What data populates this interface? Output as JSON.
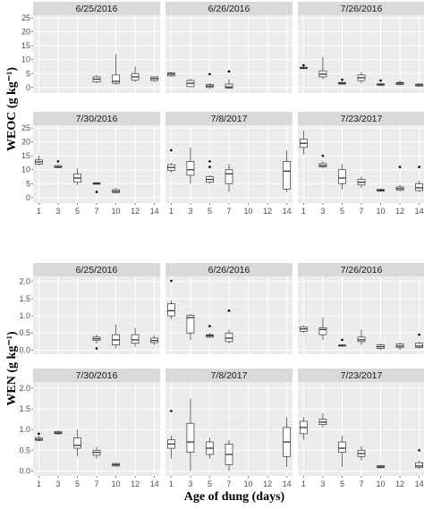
{
  "figure": {
    "xlabel": "Age of dung (days)",
    "x_ticks": [
      "1",
      "3",
      "5",
      "7",
      "10",
      "12",
      "14"
    ]
  },
  "chart_data": [
    {
      "type": "box",
      "name": "weoc",
      "ylabel": "WEOC (g kg⁻¹)",
      "ylim": [
        -2,
        26
      ],
      "yticks": [
        0,
        5,
        10,
        15,
        20,
        25
      ],
      "x_categories": [
        "1",
        "3",
        "5",
        "7",
        "10",
        "12",
        "14"
      ],
      "facets": [
        {
          "title": "6/25/2016",
          "boxes": [
            {
              "x": "7",
              "min": 1.5,
              "q1": 2.0,
              "median": 3.0,
              "q3": 3.8,
              "max": 4.5,
              "outliers": []
            },
            {
              "x": "10",
              "min": 1.0,
              "q1": 1.5,
              "median": 2.2,
              "q3": 4.5,
              "max": 12.0,
              "outliers": []
            },
            {
              "x": "12",
              "min": 2.0,
              "q1": 2.6,
              "median": 3.8,
              "q3": 5.0,
              "max": 7.5,
              "outliers": []
            },
            {
              "x": "14",
              "min": 2.0,
              "q1": 2.5,
              "median": 3.2,
              "q3": 3.8,
              "max": 4.0,
              "outliers": []
            }
          ]
        },
        {
          "title": "6/26/2016",
          "boxes": [
            {
              "x": "1",
              "min": 3.8,
              "q1": 4.2,
              "median": 4.8,
              "q3": 5.2,
              "max": 5.6,
              "outliers": []
            },
            {
              "x": "3",
              "min": 0.0,
              "q1": 0.3,
              "median": 1.5,
              "q3": 2.5,
              "max": 3.2,
              "outliers": []
            },
            {
              "x": "5",
              "min": -0.5,
              "q1": 0.0,
              "median": 0.5,
              "q3": 1.0,
              "max": 1.5,
              "outliers": [
                4.8
              ]
            },
            {
              "x": "7",
              "min": -0.5,
              "q1": -0.2,
              "median": 0.2,
              "q3": 1.2,
              "max": 3.0,
              "outliers": [
                5.8
              ]
            }
          ]
        },
        {
          "title": "7/26/2016",
          "boxes": [
            {
              "x": "1",
              "min": 6.5,
              "q1": 6.8,
              "median": 7.0,
              "q3": 7.3,
              "max": 7.5,
              "outliers": [
                8.0
              ]
            },
            {
              "x": "3",
              "min": 3.0,
              "q1": 3.8,
              "median": 4.8,
              "q3": 6.0,
              "max": 11.0,
              "outliers": []
            },
            {
              "x": "5",
              "min": 1.0,
              "q1": 1.2,
              "median": 1.5,
              "q3": 1.8,
              "max": 2.0,
              "outliers": [
                2.8
              ]
            },
            {
              "x": "7",
              "min": 1.5,
              "q1": 2.5,
              "median": 3.5,
              "q3": 4.5,
              "max": 5.5,
              "outliers": []
            },
            {
              "x": "10",
              "min": 0.5,
              "q1": 0.8,
              "median": 1.0,
              "q3": 1.3,
              "max": 1.6,
              "outliers": [
                2.5
              ]
            },
            {
              "x": "12",
              "min": 0.6,
              "q1": 1.0,
              "median": 1.5,
              "q3": 1.8,
              "max": 2.5,
              "outliers": []
            },
            {
              "x": "14",
              "min": 0.2,
              "q1": 0.5,
              "median": 0.9,
              "q3": 1.2,
              "max": 1.5,
              "outliers": []
            }
          ]
        },
        {
          "title": "7/30/2016",
          "boxes": [
            {
              "x": "1",
              "min": 11.5,
              "q1": 12.0,
              "median": 12.8,
              "q3": 13.5,
              "max": 15.0,
              "outliers": []
            },
            {
              "x": "3",
              "min": 10.5,
              "q1": 10.8,
              "median": 11.0,
              "q3": 11.5,
              "max": 11.8,
              "outliers": [
                13.0
              ]
            },
            {
              "x": "5",
              "min": 4.5,
              "q1": 5.5,
              "median": 7.0,
              "q3": 8.5,
              "max": 10.5,
              "outliers": []
            },
            {
              "x": "7",
              "min": 4.5,
              "q1": 4.8,
              "median": 5.0,
              "q3": 5.3,
              "max": 5.5,
              "outliers": [
                2.0
              ]
            },
            {
              "x": "10",
              "min": 1.5,
              "q1": 1.8,
              "median": 2.2,
              "q3": 2.8,
              "max": 3.5,
              "outliers": []
            }
          ]
        },
        {
          "title": "7/8/2017",
          "boxes": [
            {
              "x": "1",
              "min": 9.0,
              "q1": 9.8,
              "median": 10.8,
              "q3": 11.8,
              "max": 12.5,
              "outliers": [
                17.0
              ]
            },
            {
              "x": "3",
              "min": 5.0,
              "q1": 8.0,
              "median": 10.0,
              "q3": 13.0,
              "max": 18.0,
              "outliers": []
            },
            {
              "x": "5",
              "min": 5.0,
              "q1": 5.5,
              "median": 6.5,
              "q3": 7.5,
              "max": 8.0,
              "outliers": [
                13.0,
                11.0
              ]
            },
            {
              "x": "7",
              "min": 2.0,
              "q1": 5.0,
              "median": 8.5,
              "q3": 10.0,
              "max": 12.0,
              "outliers": []
            },
            {
              "x": "14",
              "min": 2.0,
              "q1": 3.0,
              "median": 9.5,
              "q3": 13.0,
              "max": 17.0,
              "outliers": []
            }
          ]
        },
        {
          "title": "7/23/2017",
          "boxes": [
            {
              "x": "1",
              "min": 15.5,
              "q1": 18.0,
              "median": 19.5,
              "q3": 21.0,
              "max": 24.0,
              "outliers": []
            },
            {
              "x": "3",
              "min": 10.5,
              "q1": 11.0,
              "median": 11.5,
              "q3": 12.2,
              "max": 13.0,
              "outliers": [
                15.0
              ]
            },
            {
              "x": "5",
              "min": 3.0,
              "q1": 5.0,
              "median": 7.0,
              "q3": 10.0,
              "max": 12.0,
              "outliers": []
            },
            {
              "x": "7",
              "min": 3.5,
              "q1": 4.5,
              "median": 5.5,
              "q3": 6.5,
              "max": 7.5,
              "outliers": []
            },
            {
              "x": "10",
              "min": 2.0,
              "q1": 2.3,
              "median": 2.6,
              "q3": 2.9,
              "max": 3.2,
              "outliers": []
            },
            {
              "x": "12",
              "min": 2.2,
              "q1": 2.6,
              "median": 3.2,
              "q3": 3.8,
              "max": 4.5,
              "outliers": [
                11.0
              ]
            },
            {
              "x": "14",
              "min": 2.0,
              "q1": 2.5,
              "median": 3.5,
              "q3": 5.0,
              "max": 6.0,
              "outliers": [
                11.0
              ]
            }
          ]
        }
      ]
    },
    {
      "type": "box",
      "name": "wen",
      "ylabel": "WEN (g kg⁻¹)",
      "ylim": [
        -0.12,
        2.15
      ],
      "yticks": [
        0.0,
        0.5,
        1.0,
        1.5,
        2.0
      ],
      "x_categories": [
        "1",
        "3",
        "5",
        "7",
        "10",
        "12",
        "14"
      ],
      "facets": [
        {
          "title": "6/25/2016",
          "boxes": [
            {
              "x": "7",
              "min": 0.2,
              "q1": 0.28,
              "median": 0.33,
              "q3": 0.38,
              "max": 0.45,
              "outliers": [
                0.05
              ]
            },
            {
              "x": "10",
              "min": 0.05,
              "q1": 0.15,
              "median": 0.3,
              "q3": 0.45,
              "max": 0.75,
              "outliers": []
            },
            {
              "x": "12",
              "min": 0.1,
              "q1": 0.2,
              "median": 0.3,
              "q3": 0.45,
              "max": 0.65,
              "outliers": []
            },
            {
              "x": "14",
              "min": 0.15,
              "q1": 0.22,
              "median": 0.28,
              "q3": 0.35,
              "max": 0.42,
              "outliers": []
            }
          ]
        },
        {
          "title": "6/26/2016",
          "boxes": [
            {
              "x": "1",
              "min": 0.9,
              "q1": 1.0,
              "median": 1.15,
              "q3": 1.35,
              "max": 1.45,
              "outliers": [
                2.02
              ]
            },
            {
              "x": "3",
              "min": 0.3,
              "q1": 0.5,
              "median": 0.95,
              "q3": 1.02,
              "max": 1.05,
              "outliers": []
            },
            {
              "x": "5",
              "min": 0.35,
              "q1": 0.38,
              "median": 0.42,
              "q3": 0.45,
              "max": 0.5,
              "outliers": [
                0.7
              ]
            },
            {
              "x": "7",
              "min": 0.2,
              "q1": 0.25,
              "median": 0.35,
              "q3": 0.5,
              "max": 0.6,
              "outliers": [
                1.15
              ]
            }
          ]
        },
        {
          "title": "7/26/2016",
          "boxes": [
            {
              "x": "1",
              "min": 0.5,
              "q1": 0.55,
              "median": 0.62,
              "q3": 0.68,
              "max": 0.72,
              "outliers": []
            },
            {
              "x": "3",
              "min": 0.3,
              "q1": 0.45,
              "median": 0.6,
              "q3": 0.65,
              "max": 0.95,
              "outliers": []
            },
            {
              "x": "5",
              "min": 0.1,
              "q1": 0.12,
              "median": 0.13,
              "q3": 0.15,
              "max": 0.18,
              "outliers": [
                0.3
              ]
            },
            {
              "x": "7",
              "min": 0.15,
              "q1": 0.25,
              "median": 0.3,
              "q3": 0.38,
              "max": 0.6,
              "outliers": []
            },
            {
              "x": "10",
              "min": 0.0,
              "q1": 0.05,
              "median": 0.1,
              "q3": 0.15,
              "max": 0.2,
              "outliers": []
            },
            {
              "x": "12",
              "min": 0.0,
              "q1": 0.08,
              "median": 0.12,
              "q3": 0.18,
              "max": 0.22,
              "outliers": []
            },
            {
              "x": "14",
              "min": 0.05,
              "q1": 0.08,
              "median": 0.12,
              "q3": 0.2,
              "max": 0.25,
              "outliers": [
                0.45
              ]
            }
          ]
        },
        {
          "title": "7/30/2016",
          "boxes": [
            {
              "x": "1",
              "min": 0.72,
              "q1": 0.74,
              "median": 0.76,
              "q3": 0.8,
              "max": 0.85,
              "outliers": [
                0.9
              ]
            },
            {
              "x": "3",
              "min": 0.87,
              "q1": 0.9,
              "median": 0.92,
              "q3": 0.95,
              "max": 0.98,
              "outliers": []
            },
            {
              "x": "5",
              "min": 0.35,
              "q1": 0.55,
              "median": 0.62,
              "q3": 0.8,
              "max": 1.0,
              "outliers": []
            },
            {
              "x": "7",
              "min": 0.3,
              "q1": 0.38,
              "median": 0.45,
              "q3": 0.5,
              "max": 0.58,
              "outliers": []
            },
            {
              "x": "10",
              "min": 0.1,
              "q1": 0.12,
              "median": 0.15,
              "q3": 0.18,
              "max": 0.2,
              "outliers": []
            }
          ]
        },
        {
          "title": "7/8/2017",
          "boxes": [
            {
              "x": "1",
              "min": 0.3,
              "q1": 0.55,
              "median": 0.65,
              "q3": 0.75,
              "max": 0.85,
              "outliers": [
                1.45
              ]
            },
            {
              "x": "3",
              "min": 0.0,
              "q1": 0.45,
              "median": 0.7,
              "q3": 1.15,
              "max": 1.75,
              "outliers": []
            },
            {
              "x": "5",
              "min": 0.3,
              "q1": 0.4,
              "median": 0.55,
              "q3": 0.7,
              "max": 0.8,
              "outliers": []
            },
            {
              "x": "7",
              "min": 0.0,
              "q1": 0.15,
              "median": 0.4,
              "q3": 0.65,
              "max": 0.75,
              "outliers": []
            },
            {
              "x": "14",
              "min": 0.1,
              "q1": 0.35,
              "median": 0.7,
              "q3": 1.05,
              "max": 1.3,
              "outliers": []
            }
          ]
        },
        {
          "title": "7/23/2017",
          "boxes": [
            {
              "x": "1",
              "min": 0.75,
              "q1": 0.9,
              "median": 1.05,
              "q3": 1.2,
              "max": 1.3,
              "outliers": []
            },
            {
              "x": "3",
              "min": 1.05,
              "q1": 1.12,
              "median": 1.18,
              "q3": 1.25,
              "max": 1.4,
              "outliers": []
            },
            {
              "x": "5",
              "min": 0.1,
              "q1": 0.45,
              "median": 0.55,
              "q3": 0.7,
              "max": 0.85,
              "outliers": []
            },
            {
              "x": "7",
              "min": 0.25,
              "q1": 0.35,
              "median": 0.42,
              "q3": 0.5,
              "max": 0.6,
              "outliers": []
            },
            {
              "x": "10",
              "min": 0.05,
              "q1": 0.08,
              "median": 0.1,
              "q3": 0.13,
              "max": 0.15,
              "outliers": []
            },
            {
              "x": "14",
              "min": 0.05,
              "q1": 0.08,
              "median": 0.12,
              "q3": 0.2,
              "max": 0.25,
              "outliers": [
                0.5
              ]
            }
          ]
        }
      ]
    }
  ],
  "colors": {
    "panel_background": "#ebebeb",
    "strip_background": "#d9d9d9",
    "grid_major": "#ffffff",
    "box_fill": "#ffffff",
    "box_stroke": "#333333",
    "outlier": "#000000"
  }
}
